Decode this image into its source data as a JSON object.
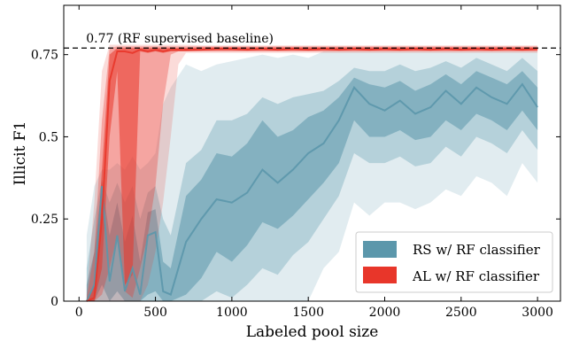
{
  "chart_data": {
    "type": "area",
    "xlabel": "Labeled pool size",
    "ylabel": "Illicit F1",
    "xlim": [
      -100,
      3150
    ],
    "ylim": [
      0,
      0.9
    ],
    "xticks": [
      0,
      500,
      1000,
      1500,
      2000,
      2500,
      3000
    ],
    "xtick_labels": [
      "0",
      "500",
      "1000",
      "1500",
      "2000",
      "2500",
      "3000"
    ],
    "yticks": [
      0,
      0.25,
      0.5,
      0.75
    ],
    "ytick_labels": [
      "0",
      "0.25",
      "0.5",
      "0.75"
    ],
    "grid": false,
    "legend_position": "lower-right",
    "baseline": {
      "value": 0.77,
      "label": "0.77 (RF supervised baseline)",
      "style": "dashed"
    },
    "series": [
      {
        "name": "RS w/ RF classifier",
        "color": "#5b97ab",
        "x": [
          50,
          100,
          150,
          200,
          250,
          300,
          350,
          400,
          450,
          500,
          550,
          600,
          700,
          800,
          900,
          1000,
          1100,
          1200,
          1300,
          1400,
          1500,
          1600,
          1700,
          1800,
          1900,
          2000,
          2100,
          2200,
          2300,
          2400,
          2500,
          2600,
          2700,
          2800,
          2900,
          3000
        ],
        "median": [
          0,
          0.05,
          0.35,
          0.06,
          0.2,
          0.03,
          0.1,
          0.02,
          0.2,
          0.21,
          0.03,
          0.02,
          0.18,
          0.25,
          0.31,
          0.3,
          0.33,
          0.4,
          0.36,
          0.4,
          0.45,
          0.48,
          0.55,
          0.65,
          0.6,
          0.58,
          0.61,
          0.57,
          0.59,
          0.64,
          0.6,
          0.65,
          0.62,
          0.6,
          0.66,
          0.59
        ],
        "inner_lo": [
          0,
          0,
          0.05,
          0,
          0.03,
          0,
          0,
          0,
          0.02,
          0.03,
          0,
          0,
          0.02,
          0.07,
          0.15,
          0.12,
          0.17,
          0.24,
          0.22,
          0.26,
          0.31,
          0.36,
          0.42,
          0.55,
          0.5,
          0.5,
          0.52,
          0.49,
          0.5,
          0.55,
          0.52,
          0.57,
          0.55,
          0.52,
          0.58,
          0.52
        ],
        "inner_hi": [
          0.05,
          0.15,
          0.36,
          0.2,
          0.3,
          0.18,
          0.26,
          0.12,
          0.27,
          0.28,
          0.12,
          0.1,
          0.32,
          0.37,
          0.45,
          0.44,
          0.48,
          0.55,
          0.5,
          0.52,
          0.56,
          0.58,
          0.62,
          0.68,
          0.66,
          0.65,
          0.67,
          0.64,
          0.66,
          0.69,
          0.66,
          0.7,
          0.68,
          0.66,
          0.7,
          0.65
        ],
        "mid_lo": [
          0,
          0,
          0,
          0,
          0,
          0,
          0,
          0,
          0,
          0,
          0,
          0,
          0,
          0,
          0.03,
          0.01,
          0.05,
          0.1,
          0.08,
          0.14,
          0.18,
          0.25,
          0.32,
          0.45,
          0.42,
          0.42,
          0.44,
          0.41,
          0.42,
          0.47,
          0.44,
          0.5,
          0.48,
          0.45,
          0.52,
          0.46
        ],
        "mid_hi": [
          0.1,
          0.25,
          0.37,
          0.3,
          0.36,
          0.3,
          0.35,
          0.25,
          0.33,
          0.35,
          0.25,
          0.2,
          0.42,
          0.46,
          0.55,
          0.55,
          0.57,
          0.62,
          0.6,
          0.62,
          0.63,
          0.64,
          0.67,
          0.71,
          0.7,
          0.7,
          0.72,
          0.7,
          0.71,
          0.73,
          0.71,
          0.74,
          0.72,
          0.7,
          0.74,
          0.7
        ],
        "outer_lo": [
          0,
          0,
          0,
          0,
          0,
          0,
          0,
          0,
          0,
          0,
          0,
          0,
          0,
          0,
          0,
          0,
          0,
          0,
          0,
          0,
          0,
          0.1,
          0.15,
          0.3,
          0.26,
          0.3,
          0.3,
          0.28,
          0.3,
          0.34,
          0.32,
          0.38,
          0.36,
          0.32,
          0.42,
          0.36
        ],
        "outer_hi": [
          0.2,
          0.35,
          0.4,
          0.4,
          0.42,
          0.4,
          0.44,
          0.4,
          0.42,
          0.45,
          0.6,
          0.65,
          0.72,
          0.7,
          0.72,
          0.73,
          0.74,
          0.75,
          0.74,
          0.75,
          0.74,
          0.76,
          0.76,
          0.76,
          0.76,
          0.76,
          0.76,
          0.76,
          0.76,
          0.76,
          0.76,
          0.76,
          0.76,
          0.76,
          0.76,
          0.76
        ]
      },
      {
        "name": "AL w/ RF classifier",
        "color": "#e8362a",
        "x": [
          50,
          100,
          150,
          200,
          250,
          300,
          350,
          400,
          450,
          500,
          550,
          600,
          650,
          700,
          800,
          900,
          1000,
          1100,
          1200,
          1300,
          1400,
          1500,
          1600,
          1700,
          1800,
          1900,
          2000,
          2100,
          2200,
          2300,
          2400,
          2500,
          2600,
          2700,
          2800,
          2900,
          3000
        ],
        "median": [
          0,
          0.01,
          0.25,
          0.67,
          0.76,
          0.76,
          0.755,
          0.765,
          0.76,
          0.765,
          0.76,
          0.765,
          0.765,
          0.765,
          0.765,
          0.768,
          0.768,
          0.765,
          0.768,
          0.765,
          0.768,
          0.765,
          0.768,
          0.765,
          0.768,
          0.765,
          0.768,
          0.765,
          0.768,
          0.765,
          0.768,
          0.765,
          0.768,
          0.765,
          0.768,
          0.765,
          0.768
        ],
        "inner_lo": [
          0,
          0,
          0.1,
          0.5,
          0.7,
          0.05,
          0.08,
          0.76,
          0.755,
          0.76,
          0.755,
          0.76,
          0.76,
          0.76,
          0.762,
          0.762,
          0.762,
          0.762,
          0.762,
          0.762,
          0.762,
          0.762,
          0.762,
          0.762,
          0.762,
          0.762,
          0.762,
          0.762,
          0.762,
          0.762,
          0.762,
          0.762,
          0.762,
          0.762,
          0.762,
          0.762,
          0.762
        ],
        "inner_hi": [
          0,
          0.05,
          0.4,
          0.75,
          0.77,
          0.77,
          0.77,
          0.77,
          0.77,
          0.77,
          0.77,
          0.77,
          0.77,
          0.77,
          0.772,
          0.772,
          0.772,
          0.772,
          0.772,
          0.772,
          0.772,
          0.772,
          0.772,
          0.772,
          0.772,
          0.772,
          0.772,
          0.772,
          0.772,
          0.772,
          0.772,
          0.772,
          0.772,
          0.772,
          0.772,
          0.772,
          0.772
        ],
        "mid_lo": [
          0,
          0,
          0.02,
          0.1,
          0.2,
          0.03,
          0.01,
          0.1,
          0.2,
          0.35,
          0.6,
          0.75,
          0.76,
          0.76,
          0.76,
          0.76,
          0.76,
          0.76,
          0.76,
          0.76,
          0.76,
          0.76,
          0.76,
          0.76,
          0.76,
          0.76,
          0.76,
          0.76,
          0.76,
          0.76,
          0.76,
          0.76,
          0.76,
          0.76,
          0.76,
          0.76,
          0.76
        ],
        "mid_hi": [
          0.01,
          0.15,
          0.55,
          0.77,
          0.775,
          0.775,
          0.775,
          0.775,
          0.775,
          0.775,
          0.775,
          0.775,
          0.775,
          0.775,
          0.775,
          0.775,
          0.775,
          0.775,
          0.775,
          0.775,
          0.775,
          0.775,
          0.775,
          0.775,
          0.775,
          0.775,
          0.775,
          0.775,
          0.775,
          0.775,
          0.775,
          0.775,
          0.775,
          0.775,
          0.775,
          0.775,
          0.775
        ],
        "outer_lo": [
          0,
          0,
          0,
          0,
          0,
          0,
          0,
          0,
          0.05,
          0.15,
          0.3,
          0.5,
          0.72,
          0.755,
          0.755,
          0.755,
          0.755,
          0.755,
          0.755,
          0.755,
          0.755,
          0.755,
          0.755,
          0.755,
          0.755,
          0.755,
          0.755,
          0.755,
          0.755,
          0.755,
          0.755,
          0.755,
          0.755,
          0.755,
          0.755,
          0.755,
          0.755
        ],
        "outer_hi": [
          0.02,
          0.3,
          0.7,
          0.78,
          0.78,
          0.78,
          0.78,
          0.78,
          0.78,
          0.78,
          0.78,
          0.78,
          0.78,
          0.78,
          0.778,
          0.778,
          0.778,
          0.778,
          0.778,
          0.778,
          0.778,
          0.778,
          0.778,
          0.778,
          0.778,
          0.778,
          0.778,
          0.778,
          0.778,
          0.778,
          0.778,
          0.778,
          0.778,
          0.778,
          0.778,
          0.778,
          0.778
        ]
      }
    ]
  }
}
